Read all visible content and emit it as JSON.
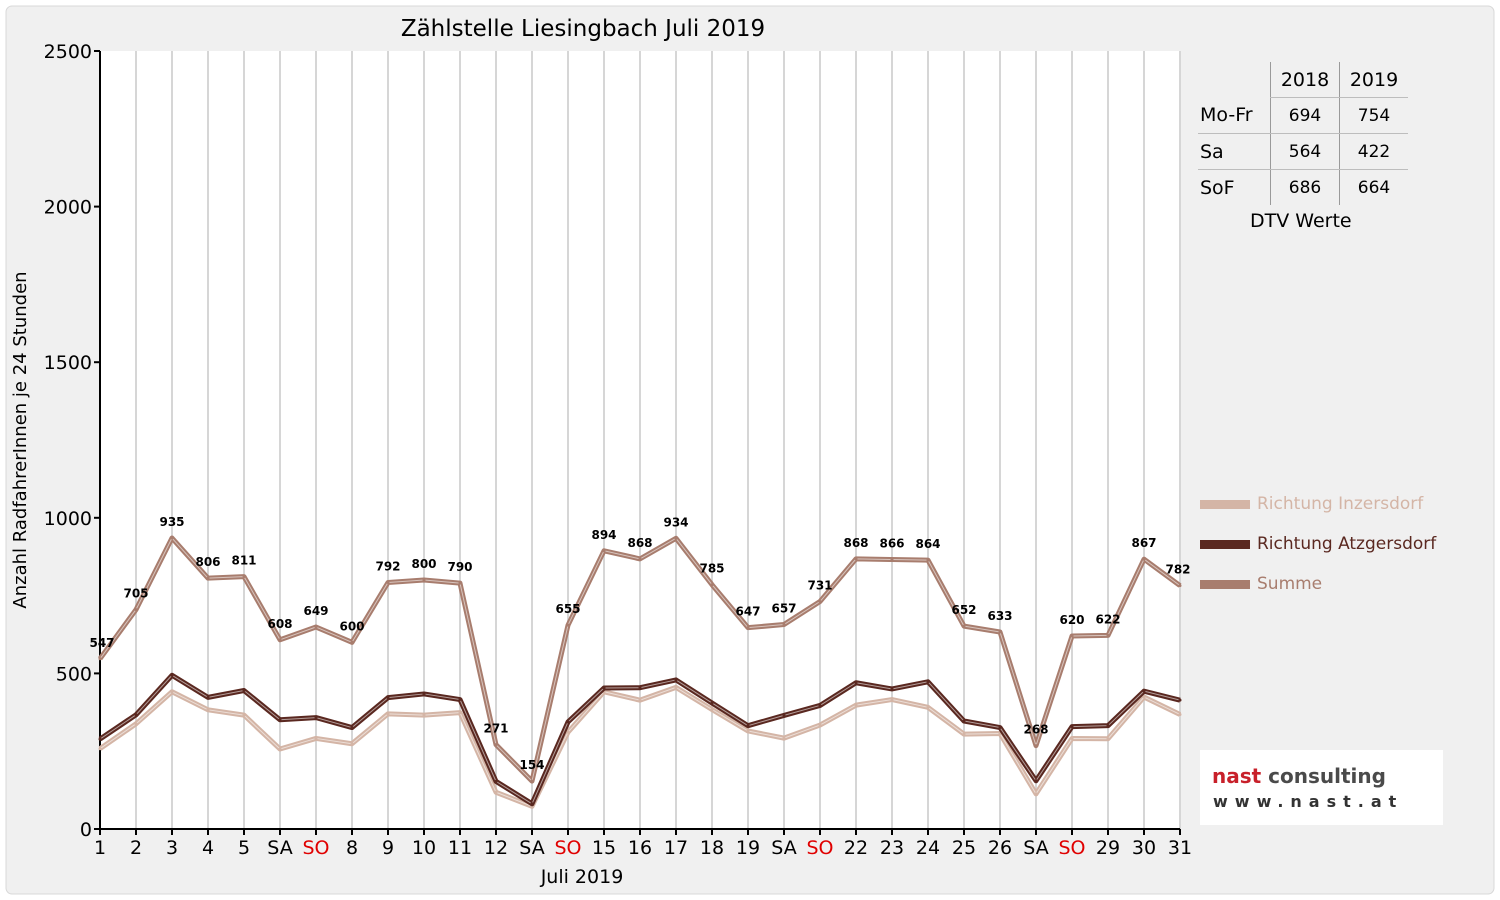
{
  "chart_data": {
    "type": "line",
    "title": "Zählstelle Liesingbach Juli 2019",
    "xlabel": "Juli 2019",
    "ylabel": "Anzahl RadfahrerInnen je 24 Stunden",
    "ylim": [
      0,
      2500
    ],
    "yticks": [
      "0",
      "500",
      "1000",
      "1500",
      "2000",
      "2500"
    ],
    "grid": "vertical",
    "legend_position": "right",
    "categories": [
      "1",
      "2",
      "3",
      "4",
      "5",
      "SA",
      "SO",
      "8",
      "9",
      "10",
      "11",
      "12",
      "SA",
      "SO",
      "15",
      "16",
      "17",
      "18",
      "19",
      "SA",
      "SO",
      "22",
      "23",
      "24",
      "25",
      "26",
      "SA",
      "SO",
      "29",
      "30",
      "31"
    ],
    "category_colors": {
      "SO": "#e00000"
    },
    "series": [
      {
        "name": "Richtung Inzersdorf",
        "color": "#d4b5a6",
        "values": [
          258,
          338,
          441,
          383,
          366,
          257,
          291,
          274,
          370,
          366,
          374,
          118,
          73,
          311,
          441,
          414,
          455,
          384,
          315,
          292,
          334,
          398,
          416,
          391,
          305,
          307,
          113,
          291,
          290,
          424,
          368
        ]
      },
      {
        "name": "Richtung Atzgersdorf",
        "color": "#5a2820",
        "values": [
          289,
          367,
          494,
          423,
          445,
          351,
          358,
          326,
          422,
          434,
          416,
          153,
          81,
          344,
          453,
          454,
          479,
          405,
          332,
          365,
          397,
          470,
          450,
          473,
          347,
          326,
          155,
          329,
          332,
          443,
          414
        ]
      },
      {
        "name": "Summe",
        "color": "#a87d6e",
        "labeled": true,
        "values": [
          547,
          705,
          935,
          806,
          811,
          608,
          649,
          600,
          792,
          800,
          790,
          271,
          154,
          655,
          894,
          868,
          934,
          785,
          647,
          657,
          731,
          868,
          866,
          864,
          652,
          633,
          268,
          620,
          622,
          867,
          782
        ]
      }
    ],
    "data_labels": [
      "547",
      "705",
      "935",
      "806",
      "811",
      "608",
      "649",
      "600",
      "792",
      "800",
      "790",
      "271",
      "154",
      "655",
      "894",
      "868",
      "934",
      "785",
      "647",
      "657",
      "731",
      "868",
      "866",
      "864",
      "652",
      "633",
      "268",
      "620",
      "622",
      "867",
      "782"
    ]
  },
  "dtv_table": {
    "headers": [
      "2018",
      "2019"
    ],
    "rows": [
      {
        "label": "Mo-Fr",
        "v2018": "694",
        "v2019": "754"
      },
      {
        "label": "Sa",
        "v2018": "564",
        "v2019": "422"
      },
      {
        "label": "SoF",
        "v2018": "686",
        "v2019": "664"
      }
    ],
    "caption": "DTV Werte"
  },
  "legend": [
    {
      "label": "Richtung Inzersdorf",
      "color": "#d4b5a6"
    },
    {
      "label": "Richtung Atzgersdorf",
      "color": "#5a2820"
    },
    {
      "label": "Summe",
      "color": "#a87d6e"
    }
  ],
  "logo": {
    "line1a": "nast",
    "line1b": " consulting",
    "line2": "www.nast.at"
  }
}
